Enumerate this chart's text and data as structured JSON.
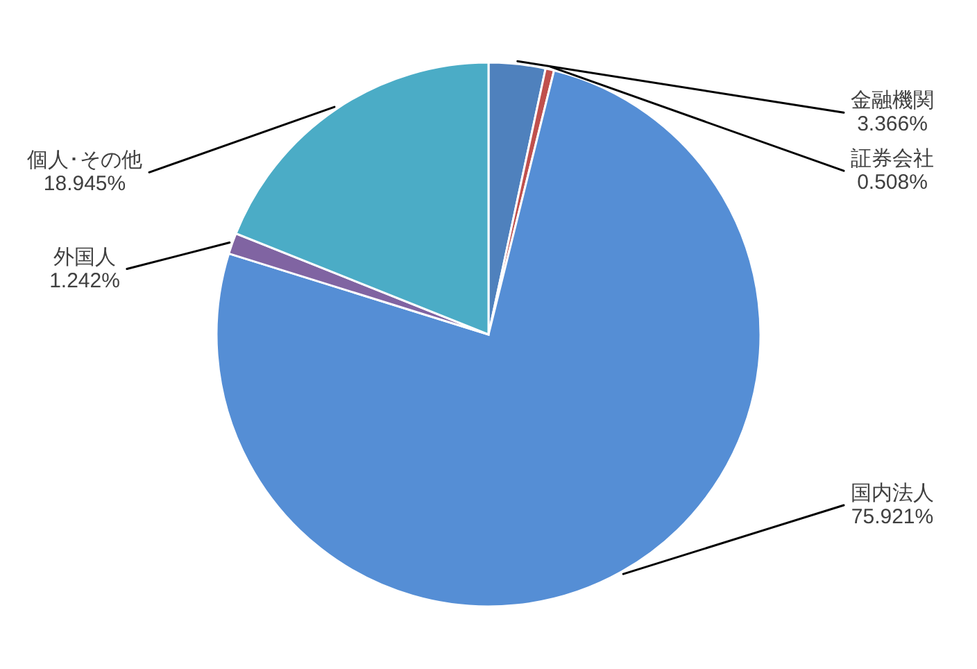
{
  "chart_data": {
    "type": "pie",
    "categories": [
      "金融機関",
      "証券会社",
      "国内法人",
      "外国人",
      "個人･その他"
    ],
    "values": [
      3.366,
      0.508,
      75.921,
      1.242,
      18.945
    ],
    "value_labels": [
      "3.366%",
      "0.508%",
      "75.921%",
      "1.242%",
      "18.945%"
    ],
    "colors": [
      "#4f81bd",
      "#c0504d",
      "#558ed5",
      "#8064a2",
      "#4bacc6"
    ]
  }
}
